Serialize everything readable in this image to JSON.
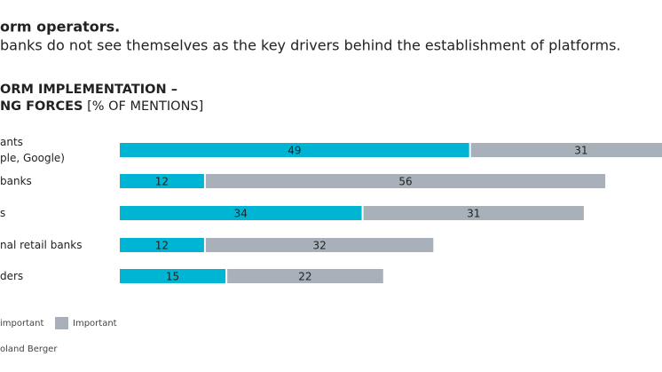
{
  "chart_data": {
    "type": "stacked-hbar",
    "title": "orm operators.",
    "subtitle": "banks do not see themselves as the key drivers behind the establishment of platforms.",
    "chart_title": [
      "ORM IMPLEMENTATION –",
      "NG FORCES"
    ],
    "chart_unit": " [% OF MENTIONS]",
    "categories": [
      [
        "ants",
        "ple, Google)"
      ],
      [
        "banks"
      ],
      [
        "s"
      ],
      [
        "nal retail banks"
      ],
      [
        "ders"
      ]
    ],
    "series": [
      {
        "name": "important",
        "color": "#00b5d3",
        "values": [
          49,
          12,
          34,
          12,
          15
        ]
      },
      {
        "name": "Important",
        "color": "#a8b1ba",
        "values": [
          31,
          56,
          31,
          32,
          22
        ]
      }
    ],
    "xlim": [
      0,
      80
    ],
    "source": "oland Berger"
  }
}
